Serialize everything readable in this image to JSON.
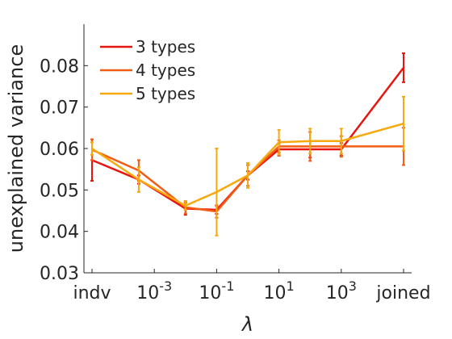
{
  "chart_data": {
    "type": "line",
    "title": "",
    "xlabel": "λ",
    "ylabel": "unexplained variance",
    "ylim": [
      0.03,
      0.09
    ],
    "y_ticks": [
      "0.03",
      "0.04",
      "0.05",
      "0.06",
      "0.07",
      "0.08"
    ],
    "y_tick_values": [
      0.03,
      0.04,
      0.05,
      0.06,
      0.07,
      0.08
    ],
    "x_positions": [
      0,
      1,
      2,
      3,
      4,
      5,
      6,
      7,
      8
    ],
    "x_ticks": [
      {
        "pos": 0,
        "base": "indv",
        "exp": ""
      },
      {
        "pos": 2,
        "base": "10",
        "exp": "-3"
      },
      {
        "pos": 4,
        "base": "10",
        "exp": "-1"
      },
      {
        "pos": 6,
        "base": "10",
        "exp": "1"
      },
      {
        "pos": 8,
        "base": "10",
        "exp": "3"
      },
      {
        "pos": 10,
        "base": "joined",
        "exp": ""
      }
    ],
    "x_points": [
      0,
      1.5,
      3,
      4,
      5,
      6,
      7,
      8,
      10
    ],
    "xlim": [
      0,
      10
    ],
    "grid": false,
    "legend_position": "top-left",
    "series": [
      {
        "name": "3 types",
        "color": "#e8150f",
        "values": [
          0.0572,
          0.0525,
          0.0455,
          0.0452,
          0.0535,
          0.0598,
          0.0598,
          0.0598,
          0.0795
        ],
        "errors": [
          0.005,
          0.001,
          0.0015,
          0.001,
          0.001,
          0.0015,
          0.002,
          0.0015,
          0.0035
        ]
      },
      {
        "name": "4 types",
        "color": "#f25c14",
        "values": [
          0.0597,
          0.0547,
          0.0458,
          0.0448,
          0.0535,
          0.0605,
          0.0605,
          0.0605,
          0.0605
        ],
        "errors": [
          0.0025,
          0.0025,
          0.0015,
          0.0015,
          0.0025,
          0.0015,
          0.0035,
          0.0025,
          0.0045
        ]
      },
      {
        "name": "5 types",
        "color": "#f5a90c",
        "values": [
          0.06,
          0.0525,
          0.0462,
          0.0495,
          0.0535,
          0.0615,
          0.0618,
          0.0618,
          0.066
        ],
        "errors": [
          0.0015,
          0.003,
          0.001,
          0.0105,
          0.003,
          0.003,
          0.003,
          0.003,
          0.0065
        ]
      }
    ]
  }
}
